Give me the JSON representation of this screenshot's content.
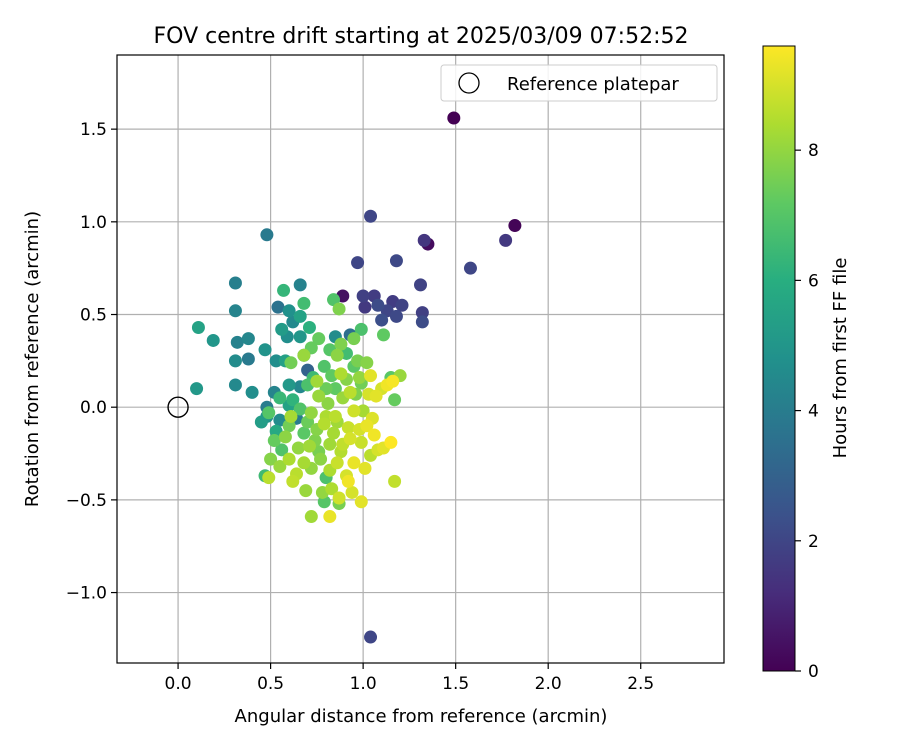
{
  "chart_data": {
    "type": "scatter",
    "title": "FOV centre drift starting at 2025/03/09 07:52:52",
    "xlabel": "Angular distance from reference (arcmin)",
    "ylabel": "Rotation from reference (arcmin)",
    "xlim": [
      -0.33,
      2.95
    ],
    "ylim": [
      -1.38,
      1.9
    ],
    "xticks": [
      0.0,
      0.5,
      1.0,
      1.5,
      2.0,
      2.5
    ],
    "xtick_labels": [
      "0.0",
      "0.5",
      "1.0",
      "1.5",
      "2.0",
      "2.5"
    ],
    "yticks": [
      -1.0,
      -0.5,
      0.0,
      0.5,
      1.0,
      1.5
    ],
    "ytick_labels": [
      "−1.0",
      "−0.5",
      "0.0",
      "0.5",
      "1.0",
      "1.5"
    ],
    "grid": true,
    "colormap": "viridis",
    "colorbar": {
      "label": "Hours from first FF file",
      "range": [
        0,
        9.6
      ],
      "ticks": [
        0,
        2,
        4,
        6,
        8
      ],
      "tick_labels": [
        "0",
        "2",
        "4",
        "6",
        "8"
      ]
    },
    "legend": {
      "position": "top-right",
      "entries": [
        {
          "label": "Reference platepar",
          "marker": "open-circle"
        }
      ]
    },
    "reference_point": {
      "x": 0.0,
      "y": 0.0
    },
    "points": [
      [
        1.49,
        1.56,
        0.0
      ],
      [
        1.82,
        0.98,
        0.1
      ],
      [
        1.35,
        0.88,
        0.3
      ],
      [
        0.89,
        0.6,
        0.4
      ],
      [
        1.33,
        0.9,
        1.5
      ],
      [
        1.77,
        0.9,
        1.6
      ],
      [
        1.58,
        0.75,
        2.0
      ],
      [
        0.97,
        0.78,
        2.0
      ],
      [
        1.18,
        0.79,
        2.1
      ],
      [
        1.31,
        0.66,
        1.9
      ],
      [
        1.0,
        0.6,
        1.8
      ],
      [
        1.06,
        0.6,
        1.7
      ],
      [
        1.01,
        0.54,
        1.6
      ],
      [
        1.08,
        0.55,
        2.2
      ],
      [
        1.13,
        0.52,
        2.0
      ],
      [
        1.16,
        0.57,
        1.7
      ],
      [
        1.21,
        0.55,
        1.9
      ],
      [
        1.32,
        0.51,
        1.8
      ],
      [
        1.18,
        0.49,
        2.1
      ],
      [
        1.1,
        0.47,
        2.3
      ],
      [
        1.32,
        0.46,
        2.2
      ],
      [
        1.04,
        1.03,
        2.0
      ],
      [
        1.04,
        -1.24,
        2.0
      ],
      [
        0.48,
        0.93,
        3.9
      ],
      [
        0.31,
        0.67,
        4.1
      ],
      [
        0.66,
        0.66,
        4.2
      ],
      [
        0.54,
        0.54,
        3.6
      ],
      [
        0.31,
        0.52,
        4.3
      ],
      [
        0.6,
        0.52,
        4.8
      ],
      [
        0.11,
        0.43,
        5.5
      ],
      [
        0.62,
        0.46,
        4.5
      ],
      [
        0.32,
        0.35,
        4.2
      ],
      [
        0.19,
        0.36,
        5.0
      ],
      [
        0.38,
        0.37,
        4.4
      ],
      [
        0.56,
        0.42,
        5.2
      ],
      [
        0.66,
        0.38,
        5.0
      ],
      [
        0.59,
        0.38,
        4.7
      ],
      [
        0.93,
        0.39,
        3.5
      ],
      [
        0.85,
        0.38,
        4.6
      ],
      [
        0.47,
        0.31,
        4.9
      ],
      [
        0.31,
        0.25,
        4.6
      ],
      [
        0.38,
        0.26,
        3.9
      ],
      [
        0.53,
        0.25,
        4.7
      ],
      [
        0.58,
        0.25,
        5.4
      ],
      [
        0.68,
        0.28,
        4.8
      ],
      [
        0.1,
        0.1,
        5.1
      ],
      [
        0.31,
        0.12,
        4.5
      ],
      [
        0.4,
        0.08,
        4.7
      ],
      [
        0.52,
        0.08,
        4.3
      ],
      [
        0.6,
        0.12,
        5.1
      ],
      [
        0.48,
        0.0,
        4.0
      ],
      [
        0.6,
        0.01,
        5.5
      ],
      [
        0.66,
        0.11,
        4.4
      ],
      [
        0.7,
        0.2,
        3.0
      ],
      [
        0.48,
        -0.05,
        4.9
      ],
      [
        0.45,
        -0.08,
        5.3
      ],
      [
        0.55,
        -0.07,
        4.6
      ],
      [
        0.53,
        -0.13,
        5.8
      ],
      [
        0.64,
        -0.06,
        4.0
      ],
      [
        0.57,
        0.63,
        6.3
      ],
      [
        0.68,
        0.56,
        6.6
      ],
      [
        0.71,
        0.43,
        6.1
      ],
      [
        0.66,
        0.49,
        5.5
      ],
      [
        0.84,
        0.58,
        6.9
      ],
      [
        0.87,
        0.53,
        7.7
      ],
      [
        0.95,
        0.37,
        7.6
      ],
      [
        1.11,
        0.39,
        7.2
      ],
      [
        0.99,
        0.42,
        6.8
      ],
      [
        0.72,
        0.32,
        7.3
      ],
      [
        0.82,
        0.31,
        7.0
      ],
      [
        0.88,
        0.34,
        7.7
      ],
      [
        0.97,
        0.25,
        7.6
      ],
      [
        1.02,
        0.24,
        7.8
      ],
      [
        0.61,
        0.24,
        7.5
      ],
      [
        0.79,
        0.22,
        6.9
      ],
      [
        0.73,
        0.16,
        6.5
      ],
      [
        0.83,
        0.17,
        7.2
      ],
      [
        0.91,
        0.15,
        7.8
      ],
      [
        0.98,
        0.16,
        8.0
      ],
      [
        1.15,
        0.16,
        7.1
      ],
      [
        1.2,
        0.17,
        8.1
      ],
      [
        1.17,
        0.04,
        7.3
      ],
      [
        0.68,
        0.28,
        8.1
      ],
      [
        0.76,
        0.37,
        7.3
      ],
      [
        0.86,
        0.28,
        7.9
      ],
      [
        0.95,
        0.22,
        7.1
      ],
      [
        0.91,
        0.29,
        6.6
      ],
      [
        0.7,
        0.12,
        6.8
      ],
      [
        0.76,
        0.06,
        8.1
      ],
      [
        0.81,
        0.02,
        7.9
      ],
      [
        0.89,
        0.05,
        8.1
      ],
      [
        0.96,
        0.07,
        7.7
      ],
      [
        1.0,
        -0.02,
        8.3
      ],
      [
        1.03,
        0.07,
        9.0
      ],
      [
        1.07,
        0.06,
        9.2
      ],
      [
        1.13,
        0.12,
        9.4
      ],
      [
        1.16,
        0.14,
        9.5
      ],
      [
        1.04,
        0.17,
        9.2
      ],
      [
        1.1,
        0.1,
        9.0
      ],
      [
        0.72,
        -0.03,
        8.0
      ],
      [
        0.8,
        -0.05,
        8.4
      ],
      [
        0.86,
        -0.08,
        8.2
      ],
      [
        0.92,
        -0.11,
        8.8
      ],
      [
        0.98,
        -0.12,
        9.0
      ],
      [
        1.02,
        -0.1,
        9.3
      ],
      [
        1.05,
        -0.06,
        9.1
      ],
      [
        0.95,
        -0.02,
        8.9
      ],
      [
        0.6,
        -0.1,
        7.5
      ],
      [
        0.68,
        -0.14,
        7.1
      ],
      [
        0.74,
        -0.18,
        7.7
      ],
      [
        0.82,
        -0.2,
        8.2
      ],
      [
        0.88,
        -0.24,
        8.5
      ],
      [
        0.93,
        -0.17,
        9.0
      ],
      [
        0.99,
        -0.19,
        8.8
      ],
      [
        1.06,
        -0.15,
        9.4
      ],
      [
        1.11,
        -0.22,
        9.2
      ],
      [
        1.15,
        -0.19,
        9.6
      ],
      [
        0.52,
        -0.18,
        7.3
      ],
      [
        0.56,
        -0.23,
        6.9
      ],
      [
        0.5,
        -0.28,
        7.8
      ],
      [
        0.55,
        -0.32,
        8.1
      ],
      [
        0.6,
        -0.28,
        8.4
      ],
      [
        0.64,
        -0.36,
        8.6
      ],
      [
        0.68,
        -0.3,
        8.3
      ],
      [
        0.72,
        -0.33,
        8.0
      ],
      [
        0.77,
        -0.28,
        7.9
      ],
      [
        0.82,
        -0.34,
        8.4
      ],
      [
        0.86,
        -0.3,
        8.8
      ],
      [
        0.91,
        -0.37,
        9.0
      ],
      [
        0.95,
        -0.3,
        9.3
      ],
      [
        1.01,
        -0.33,
        9.2
      ],
      [
        1.04,
        -0.26,
        8.6
      ],
      [
        1.08,
        -0.23,
        9.0
      ],
      [
        1.17,
        -0.4,
        8.7
      ],
      [
        0.92,
        -0.4,
        9.4
      ],
      [
        0.94,
        -0.46,
        9.0
      ],
      [
        0.99,
        -0.51,
        9.2
      ],
      [
        0.87,
        -0.49,
        8.9
      ],
      [
        0.83,
        -0.44,
        8.4
      ],
      [
        0.78,
        -0.46,
        8.0
      ],
      [
        0.69,
        -0.45,
        8.1
      ],
      [
        0.62,
        -0.4,
        8.7
      ],
      [
        0.47,
        -0.37,
        6.5
      ],
      [
        0.49,
        -0.38,
        8.6
      ],
      [
        0.72,
        -0.59,
        8.2
      ],
      [
        0.82,
        -0.59,
        9.3
      ],
      [
        0.79,
        -0.51,
        7.0
      ],
      [
        0.87,
        -0.52,
        7.6
      ],
      [
        0.8,
        -0.38,
        6.8
      ],
      [
        0.49,
        -0.03,
        7.0
      ],
      [
        0.55,
        0.05,
        6.4
      ],
      [
        0.62,
        0.04,
        6.2
      ],
      [
        0.66,
        -0.01,
        6.9
      ],
      [
        0.7,
        -0.08,
        7.4
      ],
      [
        0.75,
        -0.12,
        7.8
      ],
      [
        0.79,
        -0.09,
        8.5
      ],
      [
        0.84,
        -0.14,
        8.3
      ],
      [
        0.89,
        -0.2,
        8.7
      ],
      [
        0.76,
        -0.24,
        7.6
      ],
      [
        0.71,
        -0.21,
        8.2
      ],
      [
        0.65,
        -0.22,
        8.0
      ],
      [
        0.58,
        -0.16,
        7.9
      ],
      [
        0.61,
        -0.05,
        8.3
      ],
      [
        0.85,
        -0.05,
        8.6
      ],
      [
        0.8,
        0.1,
        7.4
      ],
      [
        0.75,
        0.14,
        8.2
      ],
      [
        0.88,
        0.18,
        8.4
      ],
      [
        0.93,
        0.08,
        8.6
      ],
      [
        0.99,
        0.13,
        7.5
      ],
      [
        0.85,
        0.1,
        7.2
      ]
    ]
  }
}
